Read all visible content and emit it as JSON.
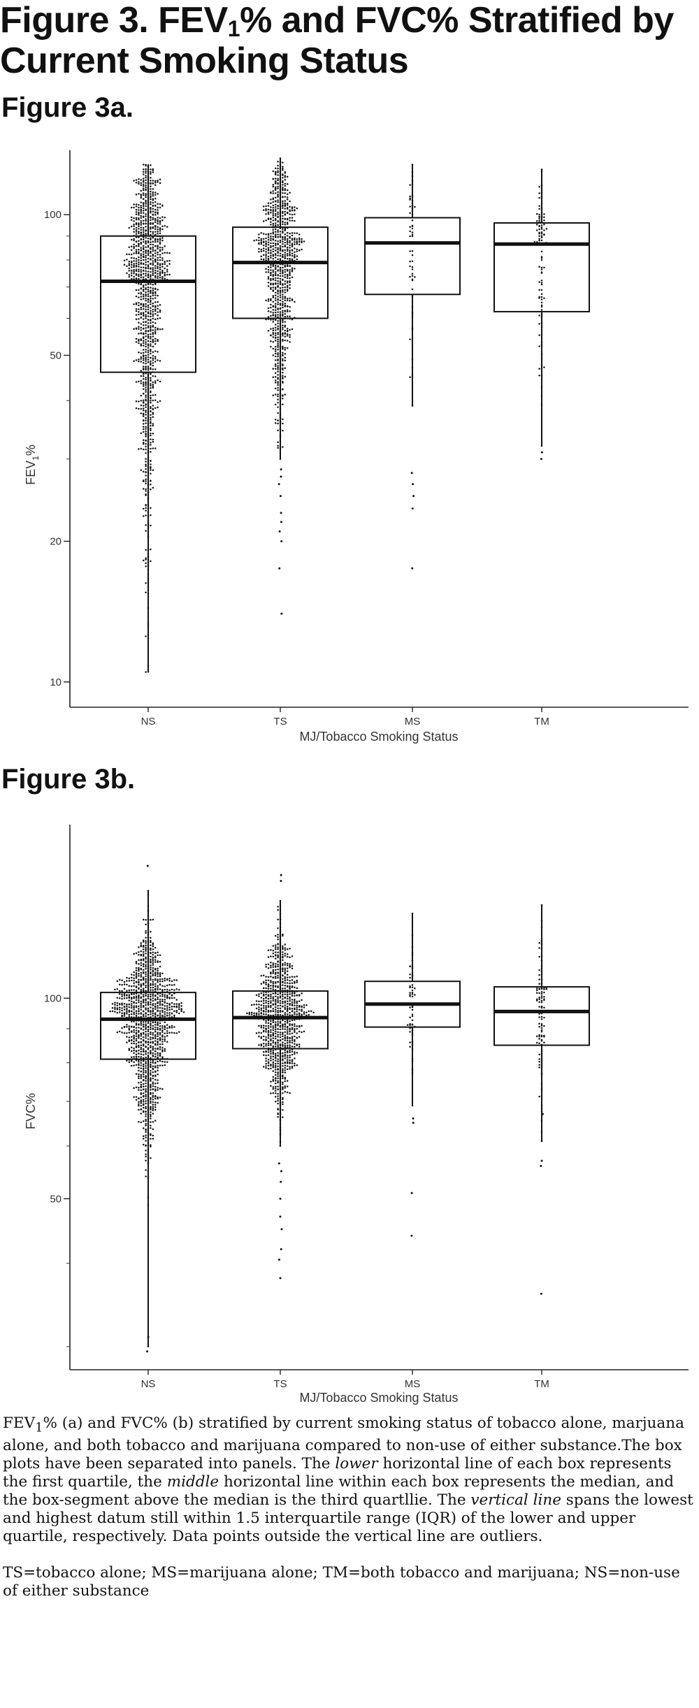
{
  "figure": {
    "title_pre": "Figure 3. FEV",
    "title_sub": "1",
    "title_post": "% and FVC% Stratified by Current Smoking Status",
    "panel_a_label": "Figure 3a.",
    "panel_b_label": "Figure 3b."
  },
  "chart_data": [
    {
      "type": "box",
      "panel": "Figure 3a.",
      "categories": [
        "NS",
        "TS",
        "MS",
        "TM"
      ],
      "xlabel": "MJ/Tobacco Smoking Status",
      "ylabel_pre": "FEV",
      "ylabel_sub": "1",
      "ylabel_post": "%",
      "yscale": "log",
      "ylim": [
        9.2,
        135
      ],
      "yticks": [
        10,
        20,
        50,
        100
      ],
      "grid": false,
      "boxes": [
        {
          "category": "NS",
          "q1": 46,
          "median": 72,
          "q3": 90,
          "whisker_low": 10.5,
          "whisker_high": 128,
          "n_points": 1200,
          "outliers": []
        },
        {
          "category": "TS",
          "q1": 60,
          "median": 79,
          "q3": 94,
          "whisker_low": 30,
          "whisker_high": 132,
          "n_points": 900,
          "outliers": [
            14,
            17.5,
            20,
            21,
            22,
            23,
            25,
            26.5,
            27.5,
            28.5
          ]
        },
        {
          "category": "MS",
          "q1": 67.5,
          "median": 87,
          "q3": 98.5,
          "whisker_low": 39,
          "whisker_high": 128,
          "n_points": 60,
          "outliers": [
            17.5,
            23.5,
            25,
            26.5,
            28
          ]
        },
        {
          "category": "TM",
          "q1": 62,
          "median": 86.5,
          "q3": 96,
          "whisker_low": 32,
          "whisker_high": 125,
          "n_points": 110,
          "outliers": [
            31,
            30
          ]
        }
      ]
    },
    {
      "type": "box",
      "panel": "Figure 3b.",
      "categories": [
        "NS",
        "TS",
        "MS",
        "TM"
      ],
      "xlabel": "MJ/Tobacco Smoking Status",
      "ylabel": "FVC%",
      "yscale": "log",
      "ylim": [
        28.5,
        180
      ],
      "yticks": [
        50,
        100
      ],
      "grid": false,
      "boxes": [
        {
          "category": "NS",
          "q1": 81,
          "median": 93,
          "q3": 102,
          "whisker_low": 30,
          "whisker_high": 145,
          "n_points": 1200,
          "outliers": [
            29.5,
            31,
            158
          ]
        },
        {
          "category": "TS",
          "q1": 84,
          "median": 93.5,
          "q3": 102.5,
          "whisker_low": 60,
          "whisker_high": 140,
          "n_points": 900,
          "outliers": [
            38,
            40.5,
            42,
            45,
            47,
            50,
            53,
            55,
            56.5,
            150,
            153
          ]
        },
        {
          "category": "MS",
          "q1": 90.5,
          "median": 98,
          "q3": 106,
          "whisker_low": 69,
          "whisker_high": 134,
          "n_points": 60,
          "outliers": [
            44,
            51,
            65,
            66
          ]
        },
        {
          "category": "TM",
          "q1": 85,
          "median": 95.5,
          "q3": 104,
          "whisker_low": 61,
          "whisker_high": 138,
          "n_points": 110,
          "outliers": [
            36,
            56,
            57,
            67
          ]
        }
      ]
    }
  ],
  "caption": {
    "p1_a": "FEV",
    "p1_sub": "1",
    "p1_b": "% (a) and FVC% (b) stratified by current smoking status of tobacco alone, marjuana alone, and both tobacco and marijuana compared to non-use of either substance.The box plots have been separated into panels. The ",
    "p1_lower": "lower",
    "p1_c": " horizontal line of each box represents the first quartile, the ",
    "p1_middle": "middle",
    "p1_d": " horizontal line within each box represents the median, and the box-segment above the median is the third quartllie. The ",
    "p1_vline": "vertical line",
    "p1_e": " spans the lowest and highest datum still within 1.5 interquartile range (IQR) of the lower and upper quartile, respectively. Data points outside the vertical line are outliers.",
    "p2": "TS=tobacco alone; MS=marijuana alone; TM=both tobacco and marijuana; NS=non-use of either substance"
  }
}
